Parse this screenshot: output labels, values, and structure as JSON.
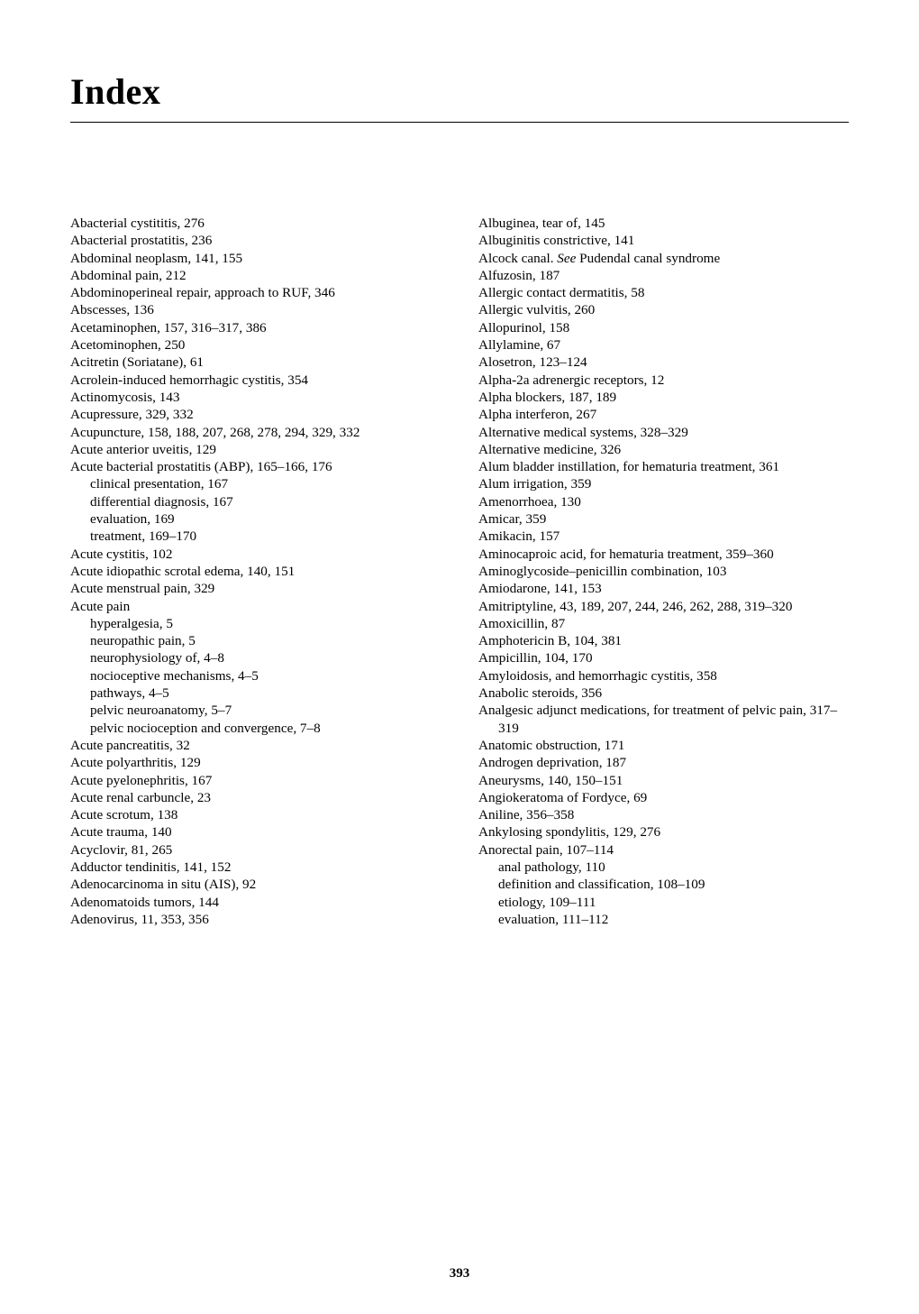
{
  "title": "Index",
  "pageNumber": "393",
  "col1": [
    {
      "t": "Abacterial cystititis, 276",
      "l": 0
    },
    {
      "t": "Abacterial prostatitis, 236",
      "l": 0
    },
    {
      "t": "Abdominal neoplasm, 141, 155",
      "l": 0
    },
    {
      "t": "Abdominal pain, 212",
      "l": 0
    },
    {
      "t": "Abdominoperineal repair, approach to RUF, 346",
      "l": 0
    },
    {
      "t": "Abscesses, 136",
      "l": 0
    },
    {
      "t": "Acetaminophen, 157, 316–317, 386",
      "l": 0
    },
    {
      "t": "Acetominophen, 250",
      "l": 0
    },
    {
      "t": "Acitretin (Soriatane), 61",
      "l": 0
    },
    {
      "t": "Acrolein-induced hemorrhagic cystitis, 354",
      "l": 0
    },
    {
      "t": "Actinomycosis, 143",
      "l": 0
    },
    {
      "t": "Acupressure, 329, 332",
      "l": 0
    },
    {
      "t": "Acupuncture, 158, 188, 207, 268, 278, 294, 329, 332",
      "l": 0
    },
    {
      "t": "Acute anterior uveitis, 129",
      "l": 0
    },
    {
      "t": "Acute bacterial prostatitis (ABP), 165–166, 176",
      "l": 0
    },
    {
      "t": "clinical presentation, 167",
      "l": 1
    },
    {
      "t": "differential diagnosis, 167",
      "l": 1
    },
    {
      "t": "evaluation, 169",
      "l": 1
    },
    {
      "t": "treatment, 169–170",
      "l": 1
    },
    {
      "t": "Acute cystitis, 102",
      "l": 0
    },
    {
      "t": "Acute idiopathic scrotal edema, 140, 151",
      "l": 0
    },
    {
      "t": "Acute menstrual pain, 329",
      "l": 0
    },
    {
      "t": "Acute pain",
      "l": 0
    },
    {
      "t": "hyperalgesia, 5",
      "l": 1
    },
    {
      "t": "neuropathic pain, 5",
      "l": 1
    },
    {
      "t": "neurophysiology of, 4–8",
      "l": 1
    },
    {
      "t": "nocioceptive mechanisms, 4–5",
      "l": 1
    },
    {
      "t": "pathways, 4–5",
      "l": 1
    },
    {
      "t": "pelvic neuroanatomy, 5–7",
      "l": 1
    },
    {
      "t": "pelvic nocioception and convergence, 7–8",
      "l": 1
    },
    {
      "t": "Acute pancreatitis, 32",
      "l": 0
    },
    {
      "t": "Acute polyarthritis, 129",
      "l": 0
    },
    {
      "t": "Acute pyelonephritis, 167",
      "l": 0
    },
    {
      "t": "Acute renal carbuncle, 23",
      "l": 0
    },
    {
      "t": "Acute scrotum, 138",
      "l": 0
    },
    {
      "t": "Acute trauma, 140",
      "l": 0
    },
    {
      "t": "Acyclovir, 81, 265",
      "l": 0
    },
    {
      "t": "Adductor tendinitis, 141, 152",
      "l": 0
    },
    {
      "t": "Adenocarcinoma in situ (AIS), 92",
      "l": 0
    },
    {
      "t": "Adenomatoids tumors, 144",
      "l": 0
    },
    {
      "t": "Adenovirus, 11, 353, 356",
      "l": 0
    }
  ],
  "col2": [
    {
      "t": "Albuginea, tear of, 145",
      "l": 0
    },
    {
      "t": "Albuginitis constrictive, 141",
      "l": 0
    },
    {
      "html": "Alcock canal. <span class=\"ital\">See</span> Pudendal canal syndrome",
      "l": 0
    },
    {
      "t": "Alfuzosin, 187",
      "l": 0
    },
    {
      "t": "Allergic contact dermatitis, 58",
      "l": 0
    },
    {
      "t": "Allergic vulvitis, 260",
      "l": 0
    },
    {
      "t": "Allopurinol, 158",
      "l": 0
    },
    {
      "t": "Allylamine, 67",
      "l": 0
    },
    {
      "t": "Alosetron, 123–124",
      "l": 0
    },
    {
      "t": "Alpha-2a adrenergic receptors, 12",
      "l": 0
    },
    {
      "t": "Alpha blockers, 187, 189",
      "l": 0
    },
    {
      "t": "Alpha interferon, 267",
      "l": 0
    },
    {
      "t": "Alternative medical systems, 328–329",
      "l": 0
    },
    {
      "t": "Alternative medicine, 326",
      "l": 0
    },
    {
      "t": "Alum bladder instillation, for hematuria treatment, 361",
      "l": 0
    },
    {
      "t": "Alum irrigation, 359",
      "l": 0
    },
    {
      "t": "Amenorrhoea, 130",
      "l": 0
    },
    {
      "t": "Amicar, 359",
      "l": 0
    },
    {
      "t": "Amikacin, 157",
      "l": 0
    },
    {
      "t": "Aminocaproic acid, for hematuria treatment, 359–360",
      "l": 0
    },
    {
      "t": "Aminoglycoside–penicillin combination, 103",
      "l": 0
    },
    {
      "t": "Amiodarone, 141, 153",
      "l": 0
    },
    {
      "t": "Amitriptyline, 43, 189, 207, 244, 246, 262, 288, 319–320",
      "l": 0
    },
    {
      "t": "Amoxicillin, 87",
      "l": 0
    },
    {
      "t": "Amphotericin B, 104, 381",
      "l": 0
    },
    {
      "t": "Ampicillin, 104, 170",
      "l": 0
    },
    {
      "t": "Amyloidosis, and hemorrhagic cystitis, 358",
      "l": 0
    },
    {
      "t": "Anabolic steroids, 356",
      "l": 0
    },
    {
      "t": "Analgesic adjunct medications, for treatment of pelvic pain, 317–319",
      "l": 0
    },
    {
      "t": "Anatomic obstruction, 171",
      "l": 0
    },
    {
      "t": "Androgen deprivation, 187",
      "l": 0
    },
    {
      "t": "Aneurysms, 140, 150–151",
      "l": 0
    },
    {
      "t": "Angiokeratoma of Fordyce, 69",
      "l": 0
    },
    {
      "t": "Aniline, 356–358",
      "l": 0
    },
    {
      "t": "Ankylosing spondylitis, 129, 276",
      "l": 0
    },
    {
      "t": "Anorectal pain, 107–114",
      "l": 0
    },
    {
      "t": "anal pathology, 110",
      "l": 1
    },
    {
      "t": "definition and classification, 108–109",
      "l": 1
    },
    {
      "t": "etiology, 109–111",
      "l": 1
    },
    {
      "t": "evaluation, 111–112",
      "l": 1
    }
  ]
}
